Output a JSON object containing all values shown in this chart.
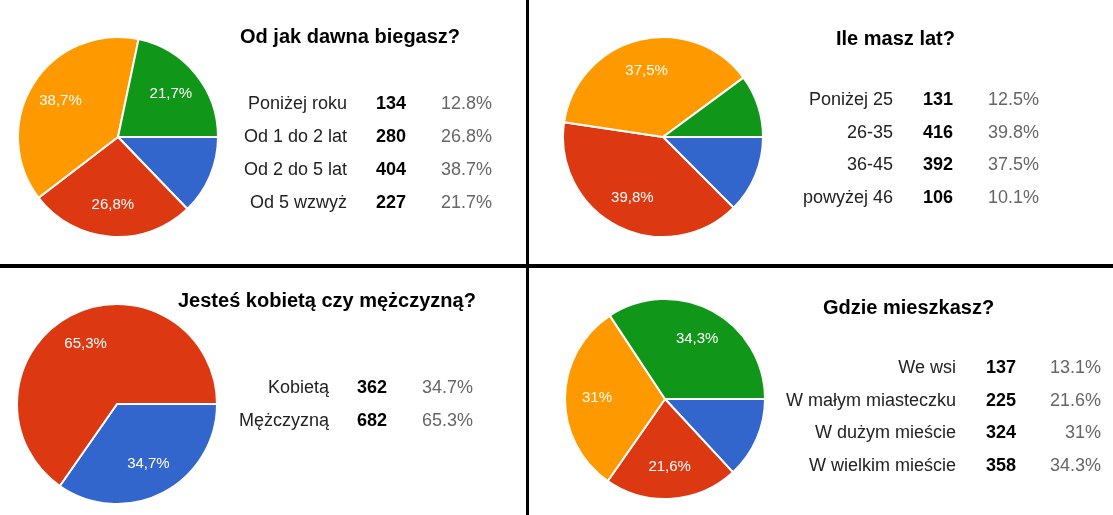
{
  "chart_data": [
    {
      "type": "pie",
      "title": "Od jak dawna biegasz?",
      "categories": [
        null,
        null,
        null,
        null
      ],
      "values": [
        12.8,
        26.8,
        38.7,
        21.7
      ],
      "colors": [
        "#3366cc",
        "#dc3912",
        "#ff9900",
        "#109618"
      ],
      "value_labels": [
        null,
        "26,8%",
        "38,7%",
        "21,7%"
      ]
    },
    {
      "type": "other",
      "categories": [
        "Poniżej roku",
        "Od 1 do 2 lat",
        "Od 2 do 5 lat",
        "Od 5 wzwyż"
      ],
      "values": [
        134,
        280,
        404,
        227
      ],
      "data_labels": true,
      "annotations": [
        "12.8%",
        "26.8%",
        "38.7%",
        "21.7%"
      ]
    },
    {
      "type": "pie",
      "title": "Ile masz lat?",
      "categories": [
        null,
        null,
        null,
        null
      ],
      "values": [
        12.5,
        39.8,
        37.5,
        10.1
      ],
      "colors": [
        "#3366cc",
        "#dc3912",
        "#ff9900",
        "#109618"
      ],
      "value_labels": [
        null,
        "39,8%",
        "37,5%",
        null
      ]
    },
    {
      "type": "other",
      "categories": [
        "Poniżej 25",
        "26-35",
        "36-45",
        "powyżej 46"
      ],
      "values": [
        131,
        416,
        392,
        106
      ],
      "data_labels": true,
      "annotations": [
        "12.5%",
        "39.8%",
        "37.5%",
        "10.1%"
      ]
    },
    {
      "type": "pie",
      "title": "Jesteś kobietą czy mężczyzną?",
      "categories": [
        null,
        null
      ],
      "values": [
        34.7,
        65.3
      ],
      "colors": [
        "#3366cc",
        "#dc3912"
      ],
      "value_labels": [
        "34,7%",
        "65,3%"
      ]
    },
    {
      "type": "other",
      "categories": [
        "Kobietą",
        "Mężczyzną"
      ],
      "values": [
        362,
        682
      ],
      "data_labels": true,
      "annotations": [
        "34.7%",
        "65.3%"
      ]
    },
    {
      "type": "pie",
      "title": "Gdzie mieszkasz?",
      "categories": [
        null,
        null,
        null,
        null
      ],
      "values": [
        13.1,
        21.6,
        31,
        34.3
      ],
      "colors": [
        "#3366cc",
        "#dc3912",
        "#ff9900",
        "#109618"
      ],
      "value_labels": [
        null,
        "21,6%",
        "31%",
        "34,3%"
      ]
    },
    {
      "type": "other",
      "categories": [
        "We wsi",
        "W małym miasteczku",
        "W dużym mieście",
        "W wielkim mieście"
      ],
      "values": [
        137,
        225,
        324,
        358
      ],
      "data_labels": true,
      "annotations": [
        "13.1%",
        "21.6%",
        "31%",
        "34.3%"
      ]
    }
  ]
}
